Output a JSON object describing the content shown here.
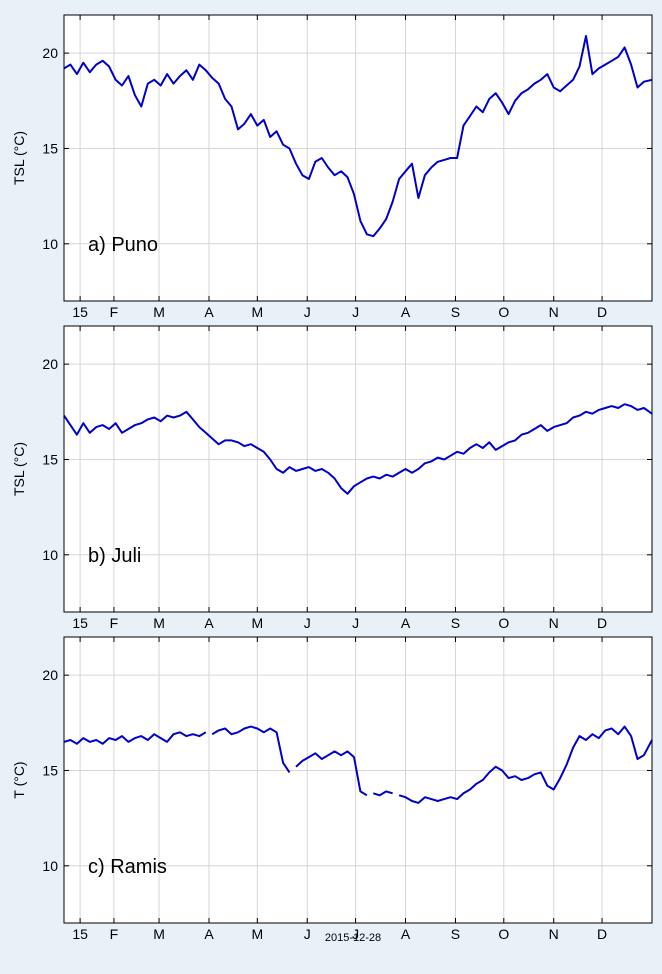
{
  "figure": {
    "date_label": "2015-12-28",
    "x_tick_labels": [
      "15",
      "F",
      "M",
      "A",
      "M",
      "J",
      "J",
      "A",
      "S",
      "O",
      "N",
      "D"
    ]
  },
  "chart_data": [
    {
      "type": "line",
      "panel_label": "a) Puno",
      "ylabel": "TSL (°C)",
      "ylim": [
        7,
        22
      ],
      "yticks": [
        10,
        15,
        20
      ],
      "xlim": [
        0,
        365
      ],
      "grid": true,
      "series": [
        {
          "color": "#0000cc",
          "points": [
            [
              0,
              19.2
            ],
            [
              4,
              19.4
            ],
            [
              8,
              18.9
            ],
            [
              12,
              19.5
            ],
            [
              16,
              19.0
            ],
            [
              20,
              19.4
            ],
            [
              24,
              19.6
            ],
            [
              28,
              19.3
            ],
            [
              32,
              18.6
            ],
            [
              36,
              18.3
            ],
            [
              40,
              18.8
            ],
            [
              44,
              17.8
            ],
            [
              48,
              17.2
            ],
            [
              52,
              18.4
            ],
            [
              56,
              18.6
            ],
            [
              60,
              18.3
            ],
            [
              64,
              18.9
            ],
            [
              68,
              18.4
            ],
            [
              72,
              18.8
            ],
            [
              76,
              19.1
            ],
            [
              80,
              18.6
            ],
            [
              84,
              19.4
            ],
            [
              88,
              19.1
            ],
            [
              92,
              18.7
            ],
            [
              96,
              18.4
            ],
            [
              100,
              17.6
            ],
            [
              104,
              17.2
            ],
            [
              108,
              16.0
            ],
            [
              112,
              16.3
            ],
            [
              116,
              16.8
            ],
            [
              120,
              16.2
            ],
            [
              124,
              16.5
            ],
            [
              128,
              15.6
            ],
            [
              132,
              15.9
            ],
            [
              136,
              15.2
            ],
            [
              140,
              15.0
            ],
            [
              144,
              14.2
            ],
            [
              148,
              13.6
            ],
            [
              152,
              13.4
            ],
            [
              156,
              14.3
            ],
            [
              160,
              14.5
            ],
            [
              164,
              14.0
            ],
            [
              168,
              13.6
            ],
            [
              172,
              13.8
            ],
            [
              176,
              13.5
            ],
            [
              180,
              12.6
            ],
            [
              184,
              11.2
            ],
            [
              188,
              10.5
            ],
            [
              192,
              10.4
            ],
            [
              196,
              10.8
            ],
            [
              200,
              11.3
            ],
            [
              204,
              12.2
            ],
            [
              208,
              13.4
            ],
            [
              212,
              13.8
            ],
            [
              216,
              14.2
            ],
            [
              220,
              12.4
            ],
            [
              224,
              13.6
            ],
            [
              228,
              14.0
            ],
            [
              232,
              14.3
            ],
            [
              236,
              14.4
            ],
            [
              240,
              14.5
            ],
            [
              244,
              14.5
            ],
            [
              248,
              16.2
            ],
            [
              252,
              16.7
            ],
            [
              256,
              17.2
            ],
            [
              260,
              16.9
            ],
            [
              264,
              17.6
            ],
            [
              268,
              17.9
            ],
            [
              272,
              17.4
            ],
            [
              276,
              16.8
            ],
            [
              280,
              17.5
            ],
            [
              284,
              17.9
            ],
            [
              288,
              18.1
            ],
            [
              292,
              18.4
            ],
            [
              296,
              18.6
            ],
            [
              300,
              18.9
            ],
            [
              304,
              18.2
            ],
            [
              308,
              18.0
            ],
            [
              312,
              18.3
            ],
            [
              316,
              18.6
            ],
            [
              320,
              19.3
            ],
            [
              324,
              20.9
            ],
            [
              328,
              18.9
            ],
            [
              332,
              19.2
            ],
            [
              336,
              19.4
            ],
            [
              340,
              19.6
            ],
            [
              344,
              19.8
            ],
            [
              348,
              20.3
            ],
            [
              352,
              19.4
            ],
            [
              356,
              18.2
            ],
            [
              360,
              18.5
            ],
            [
              365,
              18.6
            ]
          ]
        }
      ]
    },
    {
      "type": "line",
      "panel_label": "b) Juli",
      "ylabel": "TSL (°C)",
      "ylim": [
        7,
        22
      ],
      "yticks": [
        10,
        15,
        20
      ],
      "xlim": [
        0,
        365
      ],
      "grid": true,
      "series": [
        {
          "color": "#0000cc",
          "points": [
            [
              0,
              17.3
            ],
            [
              4,
              16.8
            ],
            [
              8,
              16.3
            ],
            [
              12,
              16.9
            ],
            [
              16,
              16.4
            ],
            [
              20,
              16.7
            ],
            [
              24,
              16.8
            ],
            [
              28,
              16.6
            ],
            [
              32,
              16.9
            ],
            [
              36,
              16.4
            ],
            [
              40,
              16.6
            ],
            [
              44,
              16.8
            ],
            [
              48,
              16.9
            ],
            [
              52,
              17.1
            ],
            [
              56,
              17.2
            ],
            [
              60,
              17.0
            ],
            [
              64,
              17.3
            ],
            [
              68,
              17.2
            ],
            [
              72,
              17.3
            ],
            [
              76,
              17.5
            ],
            [
              80,
              17.1
            ],
            [
              84,
              16.7
            ],
            [
              88,
              16.4
            ],
            [
              92,
              16.1
            ],
            [
              96,
              15.8
            ],
            [
              100,
              16.0
            ],
            [
              104,
              16.0
            ],
            [
              108,
              15.9
            ],
            [
              112,
              15.7
            ],
            [
              116,
              15.8
            ],
            [
              120,
              15.6
            ],
            [
              124,
              15.4
            ],
            [
              128,
              15.0
            ],
            [
              132,
              14.5
            ],
            [
              136,
              14.3
            ],
            [
              140,
              14.6
            ],
            [
              144,
              14.4
            ],
            [
              148,
              14.5
            ],
            [
              152,
              14.6
            ],
            [
              156,
              14.4
            ],
            [
              160,
              14.5
            ],
            [
              164,
              14.3
            ],
            [
              168,
              14.0
            ],
            [
              172,
              13.5
            ],
            [
              176,
              13.2
            ],
            [
              180,
              13.6
            ],
            [
              184,
              13.8
            ],
            [
              188,
              14.0
            ],
            [
              192,
              14.1
            ],
            [
              196,
              14.0
            ],
            [
              200,
              14.2
            ],
            [
              204,
              14.1
            ],
            [
              208,
              14.3
            ],
            [
              212,
              14.5
            ],
            [
              216,
              14.3
            ],
            [
              220,
              14.5
            ],
            [
              224,
              14.8
            ],
            [
              228,
              14.9
            ],
            [
              232,
              15.1
            ],
            [
              236,
              15.0
            ],
            [
              240,
              15.2
            ],
            [
              244,
              15.4
            ],
            [
              248,
              15.3
            ],
            [
              252,
              15.6
            ],
            [
              256,
              15.8
            ],
            [
              260,
              15.6
            ],
            [
              264,
              15.9
            ],
            [
              268,
              15.5
            ],
            [
              272,
              15.7
            ],
            [
              276,
              15.9
            ],
            [
              280,
              16.0
            ],
            [
              284,
              16.3
            ],
            [
              288,
              16.4
            ],
            [
              292,
              16.6
            ],
            [
              296,
              16.8
            ],
            [
              300,
              16.5
            ],
            [
              304,
              16.7
            ],
            [
              308,
              16.8
            ],
            [
              312,
              16.9
            ],
            [
              316,
              17.2
            ],
            [
              320,
              17.3
            ],
            [
              324,
              17.5
            ],
            [
              328,
              17.4
            ],
            [
              332,
              17.6
            ],
            [
              336,
              17.7
            ],
            [
              340,
              17.8
            ],
            [
              344,
              17.7
            ],
            [
              348,
              17.9
            ],
            [
              352,
              17.8
            ],
            [
              356,
              17.6
            ],
            [
              360,
              17.7
            ],
            [
              365,
              17.4
            ]
          ]
        }
      ]
    },
    {
      "type": "line",
      "panel_label": "c) Ramis",
      "ylabel": "T (°C)",
      "ylim": [
        7,
        22
      ],
      "yticks": [
        10,
        15,
        20
      ],
      "xlim": [
        0,
        365
      ],
      "grid": true,
      "series": [
        {
          "color": "#0000cc",
          "points": [
            [
              0,
              16.5
            ],
            [
              4,
              16.6
            ],
            [
              8,
              16.4
            ],
            [
              12,
              16.7
            ],
            [
              16,
              16.5
            ],
            [
              20,
              16.6
            ],
            [
              24,
              16.4
            ],
            [
              28,
              16.7
            ],
            [
              32,
              16.6
            ],
            [
              36,
              16.8
            ],
            [
              40,
              16.5
            ],
            [
              44,
              16.7
            ],
            [
              48,
              16.8
            ],
            [
              52,
              16.6
            ],
            [
              56,
              16.9
            ],
            [
              60,
              16.7
            ],
            [
              64,
              16.5
            ],
            [
              68,
              16.9
            ],
            [
              72,
              17.0
            ],
            [
              76,
              16.8
            ],
            [
              80,
              16.9
            ],
            [
              84,
              16.8
            ],
            [
              88,
              17.0
            ],
            null,
            [
              92,
              16.9
            ],
            [
              96,
              17.1
            ],
            [
              100,
              17.2
            ],
            [
              104,
              16.9
            ],
            [
              108,
              17.0
            ],
            [
              112,
              17.2
            ],
            [
              116,
              17.3
            ],
            [
              120,
              17.2
            ],
            [
              124,
              17.0
            ],
            [
              128,
              17.2
            ],
            [
              132,
              17.0
            ],
            [
              136,
              15.4
            ],
            [
              140,
              14.9
            ],
            null,
            [
              144,
              15.2
            ],
            [
              148,
              15.5
            ],
            [
              152,
              15.7
            ],
            [
              156,
              15.9
            ],
            [
              160,
              15.6
            ],
            [
              164,
              15.8
            ],
            [
              168,
              16.0
            ],
            [
              172,
              15.8
            ],
            [
              176,
              16.0
            ],
            [
              180,
              15.7
            ],
            [
              184,
              13.9
            ],
            [
              188,
              13.7
            ],
            null,
            [
              192,
              13.8
            ],
            [
              196,
              13.7
            ],
            [
              200,
              13.9
            ],
            [
              204,
              13.8
            ],
            null,
            [
              208,
              13.7
            ],
            [
              212,
              13.6
            ],
            [
              216,
              13.4
            ],
            [
              220,
              13.3
            ],
            [
              224,
              13.6
            ],
            [
              228,
              13.5
            ],
            [
              232,
              13.4
            ],
            [
              236,
              13.5
            ],
            [
              240,
              13.6
            ],
            [
              244,
              13.5
            ],
            [
              248,
              13.8
            ],
            [
              252,
              14.0
            ],
            [
              256,
              14.3
            ],
            [
              260,
              14.5
            ],
            [
              264,
              14.9
            ],
            [
              268,
              15.2
            ],
            [
              272,
              15.0
            ],
            [
              276,
              14.6
            ],
            [
              280,
              14.7
            ],
            [
              284,
              14.5
            ],
            [
              288,
              14.6
            ],
            [
              292,
              14.8
            ],
            [
              296,
              14.9
            ],
            [
              300,
              14.2
            ],
            [
              304,
              14.0
            ],
            [
              308,
              14.6
            ],
            [
              312,
              15.3
            ],
            [
              316,
              16.2
            ],
            [
              320,
              16.8
            ],
            [
              324,
              16.6
            ],
            [
              328,
              16.9
            ],
            [
              332,
              16.7
            ],
            [
              336,
              17.1
            ],
            [
              340,
              17.2
            ],
            [
              344,
              16.9
            ],
            [
              348,
              17.3
            ],
            [
              352,
              16.8
            ],
            [
              356,
              15.6
            ],
            [
              360,
              15.8
            ],
            [
              365,
              16.6
            ]
          ]
        }
      ]
    }
  ]
}
